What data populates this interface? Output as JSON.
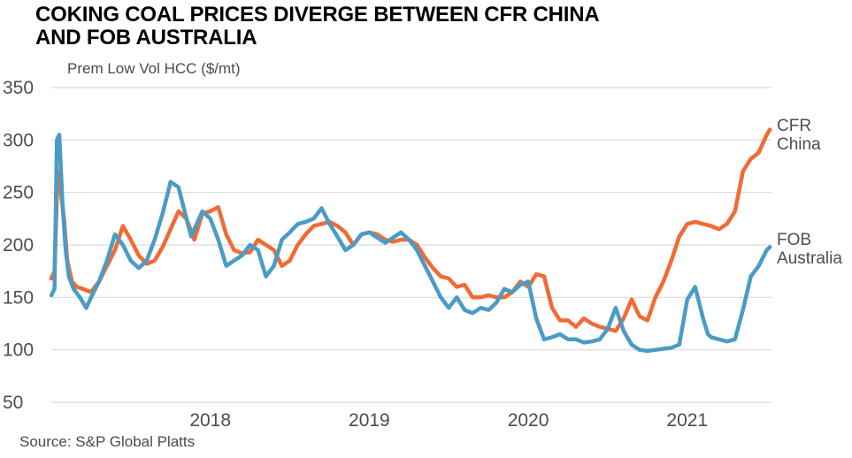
{
  "title_lines": [
    "COKING COAL PRICES DIVERGE BETWEEN CFR CHINA",
    "AND FOB AUSTRALIA"
  ],
  "source": "Source: S&P Global Platts",
  "colors": {
    "cfr": "#f26a35",
    "fob": "#4a9cc5",
    "grid": "#d9d9d9",
    "text": "#4d4d4d"
  },
  "chart_data": {
    "type": "line",
    "title": "COKING COAL PRICES DIVERGE BETWEEN CFR CHINA AND FOB AUSTRALIA",
    "ylabel": "Prem Low Vol HCC ($/mt)",
    "xlabel": "",
    "ylim": [
      50,
      350
    ],
    "yticks": [
      350,
      300,
      250,
      200,
      150,
      100,
      50
    ],
    "xlim": [
      2017.0,
      2021.53
    ],
    "xticks": [
      {
        "value": 2018.0,
        "label": "2018"
      },
      {
        "value": 2019.0,
        "label": "2019"
      },
      {
        "value": 2020.0,
        "label": "2020"
      },
      {
        "value": 2021.0,
        "label": "2021"
      }
    ],
    "grid": true,
    "series": [
      {
        "name": "CFR China",
        "label_lines": [
          "CFR",
          "China"
        ],
        "color": "#f26a35",
        "x": [
          2017.0,
          2017.02,
          2017.04,
          2017.06,
          2017.08,
          2017.1,
          2017.13,
          2017.16,
          2017.2,
          2017.25,
          2017.3,
          2017.35,
          2017.4,
          2017.45,
          2017.5,
          2017.55,
          2017.6,
          2017.65,
          2017.7,
          2017.75,
          2017.8,
          2017.85,
          2017.9,
          2017.95,
          2018.0,
          2018.05,
          2018.1,
          2018.15,
          2018.2,
          2018.25,
          2018.3,
          2018.35,
          2018.4,
          2018.45,
          2018.5,
          2018.55,
          2018.6,
          2018.65,
          2018.7,
          2018.75,
          2018.8,
          2018.85,
          2018.9,
          2018.95,
          2019.0,
          2019.05,
          2019.1,
          2019.15,
          2019.2,
          2019.25,
          2019.3,
          2019.35,
          2019.4,
          2019.45,
          2019.5,
          2019.55,
          2019.6,
          2019.65,
          2019.7,
          2019.75,
          2019.8,
          2019.85,
          2019.9,
          2019.95,
          2020.0,
          2020.05,
          2020.1,
          2020.15,
          2020.2,
          2020.25,
          2020.3,
          2020.35,
          2020.4,
          2020.45,
          2020.5,
          2020.55,
          2020.6,
          2020.65,
          2020.7,
          2020.75,
          2020.8,
          2020.85,
          2020.9,
          2020.95,
          2021.0,
          2021.05,
          2021.1,
          2021.15,
          2021.2,
          2021.25,
          2021.3,
          2021.35,
          2021.4,
          2021.45,
          2021.5,
          2021.52
        ],
        "values": [
          168,
          175,
          270,
          250,
          225,
          185,
          165,
          160,
          158,
          155,
          165,
          180,
          195,
          218,
          205,
          190,
          182,
          185,
          198,
          215,
          232,
          225,
          205,
          230,
          232,
          236,
          210,
          195,
          192,
          193,
          205,
          200,
          195,
          180,
          185,
          200,
          210,
          218,
          220,
          222,
          218,
          212,
          200,
          210,
          212,
          210,
          205,
          203,
          205,
          205,
          200,
          188,
          178,
          170,
          168,
          160,
          162,
          150,
          150,
          152,
          150,
          150,
          155,
          165,
          160,
          172,
          170,
          140,
          128,
          128,
          122,
          130,
          125,
          122,
          120,
          118,
          130,
          148,
          132,
          128,
          150,
          165,
          185,
          208,
          220,
          222,
          220,
          218,
          215,
          220,
          232,
          270,
          282,
          288,
          305,
          310
        ]
      },
      {
        "name": "FOB Australia",
        "label_lines": [
          "FOB",
          "Australia"
        ],
        "color": "#4a9cc5",
        "x": [
          2017.0,
          2017.02,
          2017.035,
          2017.05,
          2017.07,
          2017.09,
          2017.11,
          2017.14,
          2017.18,
          2017.22,
          2017.25,
          2017.3,
          2017.35,
          2017.4,
          2017.45,
          2017.5,
          2017.55,
          2017.6,
          2017.65,
          2017.7,
          2017.75,
          2017.8,
          2017.85,
          2017.88,
          2017.9,
          2017.95,
          2018.0,
          2018.05,
          2018.1,
          2018.15,
          2018.2,
          2018.25,
          2018.3,
          2018.35,
          2018.4,
          2018.45,
          2018.5,
          2018.55,
          2018.6,
          2018.65,
          2018.7,
          2018.75,
          2018.8,
          2018.85,
          2018.9,
          2018.95,
          2019.0,
          2019.05,
          2019.1,
          2019.15,
          2019.2,
          2019.25,
          2019.3,
          2019.35,
          2019.4,
          2019.45,
          2019.5,
          2019.55,
          2019.6,
          2019.65,
          2019.7,
          2019.75,
          2019.8,
          2019.85,
          2019.9,
          2019.95,
          2020.0,
          2020.05,
          2020.1,
          2020.15,
          2020.2,
          2020.25,
          2020.3,
          2020.35,
          2020.4,
          2020.45,
          2020.5,
          2020.55,
          2020.6,
          2020.65,
          2020.7,
          2020.75,
          2020.8,
          2020.85,
          2020.9,
          2020.95,
          2021.0,
          2021.05,
          2021.1,
          2021.13,
          2021.15,
          2021.2,
          2021.25,
          2021.3,
          2021.35,
          2021.4,
          2021.45,
          2021.5,
          2021.52
        ],
        "values": [
          152,
          158,
          300,
          305,
          240,
          195,
          170,
          158,
          150,
          140,
          150,
          165,
          185,
          210,
          200,
          185,
          178,
          185,
          205,
          230,
          260,
          255,
          225,
          208,
          215,
          232,
          225,
          205,
          180,
          185,
          190,
          200,
          195,
          170,
          180,
          205,
          212,
          220,
          222,
          225,
          235,
          220,
          208,
          195,
          200,
          210,
          212,
          207,
          202,
          207,
          212,
          205,
          195,
          180,
          165,
          150,
          140,
          150,
          138,
          135,
          140,
          138,
          145,
          158,
          155,
          162,
          165,
          130,
          110,
          112,
          115,
          110,
          110,
          107,
          108,
          110,
          120,
          140,
          118,
          105,
          100,
          99,
          100,
          101,
          102,
          105,
          148,
          160,
          130,
          115,
          112,
          110,
          108,
          110,
          138,
          170,
          180,
          195,
          198
        ]
      }
    ]
  }
}
